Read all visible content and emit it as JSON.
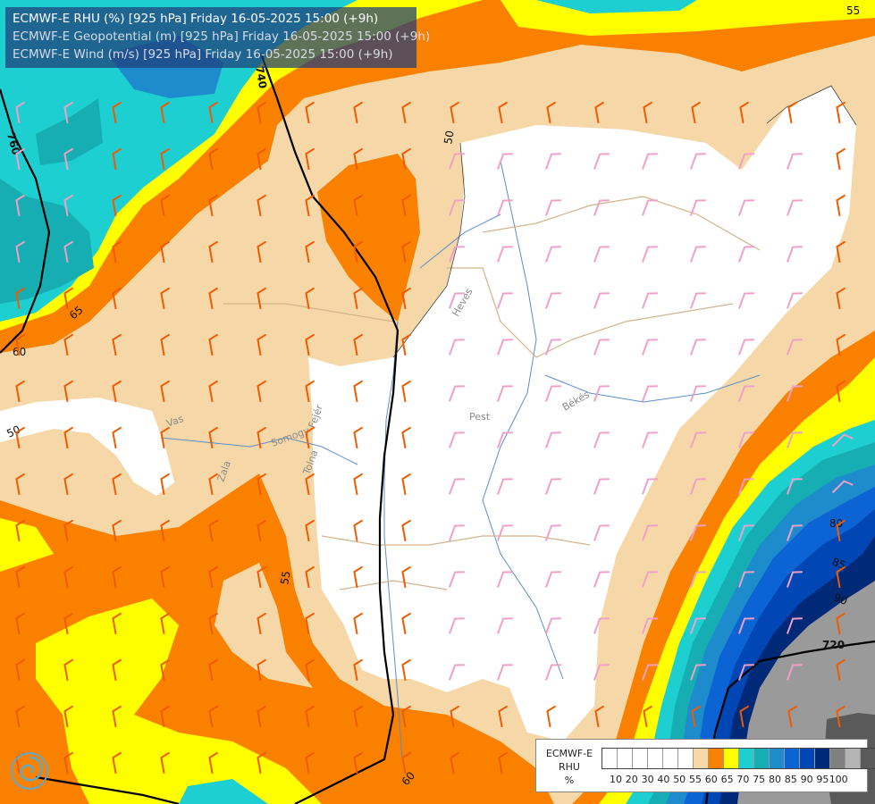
{
  "title": {
    "line1": "ECMWF-E RHU (%) [925 hPa] Friday 16-05-2025 15:00 (+9h)",
    "line2": "ECMWF-E Geopotential (m) [925 hPa] Friday 16-05-2025 15:00 (+9h)",
    "line3": "ECMWF-E Wind (m/s) [925 hPa] Friday 16-05-2025 15:00 (+9h)"
  },
  "contour_labels": {
    "geo_760": "760",
    "geo_740": "740",
    "geo_720": "720",
    "rh_65": "65",
    "rh_60_west": "60",
    "rh_50_west": "50",
    "rh_50_north": "50",
    "rh_55_top": "55",
    "rh_55_south": "55",
    "rh_60_south": "60",
    "rh_80": "80",
    "rh_85": "85",
    "rh_90": "90"
  },
  "place_labels": {
    "heves": "Heves",
    "pest": "Pest",
    "bekes": "Békés",
    "vas": "Vas",
    "somogy": "Somogy",
    "fejer": "Fejér",
    "zala": "Zala",
    "tolna": "Tolna"
  },
  "legend": {
    "title_line1": "ECMWF-E",
    "title_line2": "RHU",
    "title_line3": "%",
    "swatch_colors": [
      "#ffffff",
      "#ffffff",
      "#ffffff",
      "#ffffff",
      "#ffffff",
      "#ffffff",
      "#f6d8a8",
      "#fa8000",
      "#ffff00",
      "#1ecfd2",
      "#16aeb2",
      "#1e8ccc",
      "#0c64d4",
      "#0046b4",
      "#002a78",
      "#808080",
      "#b4b4b4",
      "#5a5a5a"
    ],
    "ticks": [
      "10",
      "20",
      "30",
      "40",
      "50",
      "55",
      "60",
      "65",
      "70",
      "75",
      "80",
      "85",
      "90",
      "95",
      "100"
    ]
  },
  "colors": {
    "rh_50_55": "#f6d8a8",
    "rh_55_60": "#fa8000",
    "rh_60_65": "#ffff00",
    "rh_65_70": "#1ecfd2",
    "rh_70_75": "#16aeb2",
    "rh_75_80": "#1e8ccc",
    "rh_80_85": "#0c64d4",
    "rh_85_90": "#0046b4",
    "rh_90_95": "#002a78",
    "rh_95_100": "#9a9a9a",
    "rh_lt_50": "#ffffff",
    "wind_barb_warm": "#f05a00",
    "wind_barb_cool": "#f0a0c8"
  },
  "logo_icon": "ecmwf-swirl-icon"
}
